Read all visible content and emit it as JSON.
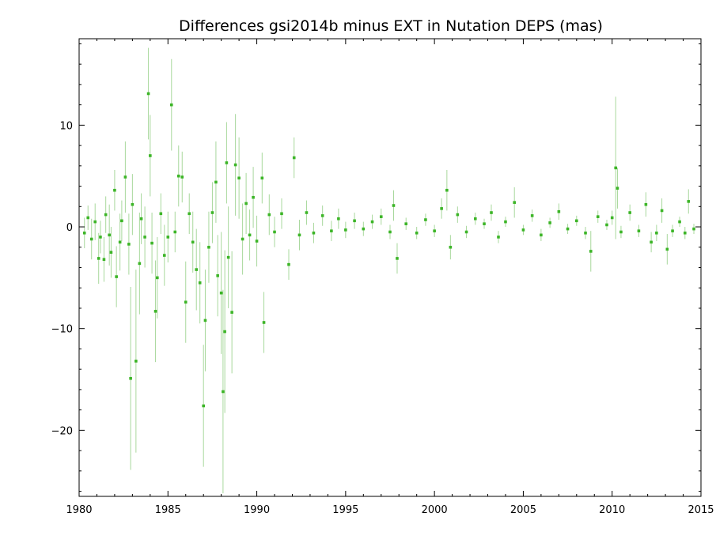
{
  "chart_data": {
    "type": "scatter",
    "title": "Differences gsi2014b minus EXT in Nutation DEPS (mas)",
    "xlabel": "",
    "ylabel": "",
    "xlim": [
      1980,
      2015
    ],
    "ylim": [
      -26.5,
      18.5
    ],
    "x_ticks": [
      1980,
      1985,
      1990,
      1995,
      2000,
      2005,
      2010,
      2015
    ],
    "y_ticks": [
      10,
      0,
      -10,
      -20
    ],
    "grid": false,
    "error_bars": true,
    "colors": {
      "marker": "#3cb527",
      "error_bar": "#a8d89c",
      "axis": "#000000"
    },
    "series": [
      {
        "points": [
          [
            1980.3,
            -0.6,
            1.5
          ],
          [
            1980.5,
            0.9,
            1.2
          ],
          [
            1980.7,
            -1.2,
            2.0
          ],
          [
            1980.9,
            0.5,
            1.8
          ],
          [
            1981.1,
            -3.1,
            2.5
          ],
          [
            1981.2,
            -1.0,
            1.6
          ],
          [
            1981.4,
            -3.2,
            2.2
          ],
          [
            1981.5,
            1.2,
            1.8
          ],
          [
            1981.7,
            -0.8,
            3.0
          ],
          [
            1981.8,
            -2.5,
            2.5
          ],
          [
            1982.0,
            3.6,
            2.0
          ],
          [
            1982.1,
            -4.9,
            3.0
          ],
          [
            1982.3,
            -1.5,
            2.8
          ],
          [
            1982.4,
            0.6,
            2.0
          ],
          [
            1982.6,
            4.9,
            3.5
          ],
          [
            1982.8,
            -1.7,
            3.0
          ],
          [
            1982.9,
            -14.9,
            9.0
          ],
          [
            1983.0,
            2.2,
            3.0
          ],
          [
            1983.2,
            -13.2,
            9.0
          ],
          [
            1983.4,
            -3.6,
            5.0
          ],
          [
            1983.5,
            0.8,
            2.5
          ],
          [
            1983.7,
            -1.0,
            3.0
          ],
          [
            1983.9,
            13.1,
            4.5
          ],
          [
            1984.0,
            7.0,
            4.0
          ],
          [
            1984.1,
            -1.6,
            3.0
          ],
          [
            1984.3,
            -8.3,
            5.0
          ],
          [
            1984.4,
            -5.0,
            4.0
          ],
          [
            1984.6,
            1.3,
            2.0
          ],
          [
            1984.8,
            -2.8,
            3.0
          ],
          [
            1985.0,
            -1.0,
            2.5
          ],
          [
            1985.2,
            12.0,
            4.5
          ],
          [
            1985.4,
            -0.5,
            2.0
          ],
          [
            1985.6,
            5.0,
            3.0
          ],
          [
            1985.8,
            4.9,
            2.5
          ],
          [
            1986.0,
            -7.4,
            4.0
          ],
          [
            1986.2,
            1.3,
            2.0
          ],
          [
            1986.4,
            -1.5,
            3.0
          ],
          [
            1986.6,
            -4.2,
            4.0
          ],
          [
            1986.8,
            -5.5,
            4.0
          ],
          [
            1987.0,
            -17.6,
            6.0
          ],
          [
            1987.1,
            -9.2,
            5.0
          ],
          [
            1987.3,
            -2.0,
            3.5
          ],
          [
            1987.5,
            1.4,
            3.0
          ],
          [
            1987.7,
            4.4,
            4.0
          ],
          [
            1987.8,
            -4.8,
            4.0
          ],
          [
            1988.0,
            -6.5,
            6.0
          ],
          [
            1988.1,
            -16.2,
            10.0
          ],
          [
            1988.2,
            -10.3,
            8.0
          ],
          [
            1988.3,
            6.3,
            4.0
          ],
          [
            1988.4,
            -3.0,
            5.0
          ],
          [
            1988.6,
            -8.4,
            6.0
          ],
          [
            1988.8,
            6.1,
            5.0
          ],
          [
            1989.0,
            4.8,
            4.0
          ],
          [
            1989.2,
            -1.2,
            3.5
          ],
          [
            1989.4,
            2.3,
            3.0
          ],
          [
            1989.6,
            -0.8,
            2.5
          ],
          [
            1989.8,
            2.9,
            3.0
          ],
          [
            1990.0,
            -1.4,
            2.5
          ],
          [
            1990.3,
            4.8,
            2.5
          ],
          [
            1990.4,
            -9.4,
            3.0
          ],
          [
            1990.7,
            1.2,
            2.0
          ],
          [
            1991.0,
            -0.5,
            1.5
          ],
          [
            1991.4,
            1.3,
            1.5
          ],
          [
            1991.8,
            -3.7,
            1.5
          ],
          [
            1992.1,
            6.8,
            2.0
          ],
          [
            1992.4,
            -0.8,
            1.5
          ],
          [
            1992.8,
            1.4,
            1.2
          ],
          [
            1993.2,
            -0.6,
            1.0
          ],
          [
            1993.7,
            1.1,
            1.0
          ],
          [
            1994.2,
            -0.4,
            1.0
          ],
          [
            1994.6,
            0.8,
            1.0
          ],
          [
            1995.0,
            -0.3,
            0.8
          ],
          [
            1995.5,
            0.6,
            0.8
          ],
          [
            1996.0,
            -0.2,
            0.7
          ],
          [
            1996.5,
            0.5,
            0.7
          ],
          [
            1997.0,
            1.0,
            0.8
          ],
          [
            1997.5,
            -0.5,
            0.7
          ],
          [
            1997.7,
            2.1,
            1.5
          ],
          [
            1997.9,
            -3.1,
            1.5
          ],
          [
            1998.4,
            0.3,
            0.6
          ],
          [
            1999.0,
            -0.6,
            0.6
          ],
          [
            1999.5,
            0.7,
            0.6
          ],
          [
            2000.0,
            -0.4,
            0.6
          ],
          [
            2000.4,
            1.8,
            1.0
          ],
          [
            2000.7,
            3.6,
            2.0
          ],
          [
            2000.9,
            -2.0,
            1.2
          ],
          [
            2001.3,
            1.2,
            0.8
          ],
          [
            2001.8,
            -0.5,
            0.6
          ],
          [
            2002.3,
            0.8,
            0.6
          ],
          [
            2002.8,
            0.3,
            0.5
          ],
          [
            2003.2,
            1.4,
            0.8
          ],
          [
            2003.6,
            -1.0,
            0.6
          ],
          [
            2004.0,
            0.5,
            0.5
          ],
          [
            2004.5,
            2.4,
            1.5
          ],
          [
            2005.0,
            -0.3,
            0.5
          ],
          [
            2005.5,
            1.1,
            0.6
          ],
          [
            2006.0,
            -0.8,
            0.6
          ],
          [
            2006.5,
            0.4,
            0.5
          ],
          [
            2007.0,
            1.5,
            0.8
          ],
          [
            2007.5,
            -0.2,
            0.5
          ],
          [
            2008.0,
            0.6,
            0.5
          ],
          [
            2008.5,
            -0.6,
            0.6
          ],
          [
            2008.8,
            -2.4,
            2.0
          ],
          [
            2009.2,
            1.0,
            0.6
          ],
          [
            2009.7,
            0.2,
            0.5
          ],
          [
            2010.0,
            0.9,
            0.7
          ],
          [
            2010.2,
            5.8,
            7.0
          ],
          [
            2010.3,
            3.8,
            2.0
          ],
          [
            2010.5,
            -0.5,
            0.6
          ],
          [
            2011.0,
            1.4,
            0.8
          ],
          [
            2011.5,
            -0.4,
            0.6
          ],
          [
            2011.9,
            2.2,
            1.2
          ],
          [
            2012.2,
            -1.5,
            1.0
          ],
          [
            2012.5,
            -0.6,
            0.8
          ],
          [
            2012.8,
            1.6,
            1.2
          ],
          [
            2013.1,
            -2.2,
            1.5
          ],
          [
            2013.4,
            -0.4,
            0.6
          ],
          [
            2013.8,
            0.5,
            0.5
          ],
          [
            2014.1,
            -0.6,
            0.6
          ],
          [
            2014.3,
            2.5,
            1.2
          ],
          [
            2014.6,
            -0.2,
            0.5
          ]
        ]
      }
    ]
  }
}
